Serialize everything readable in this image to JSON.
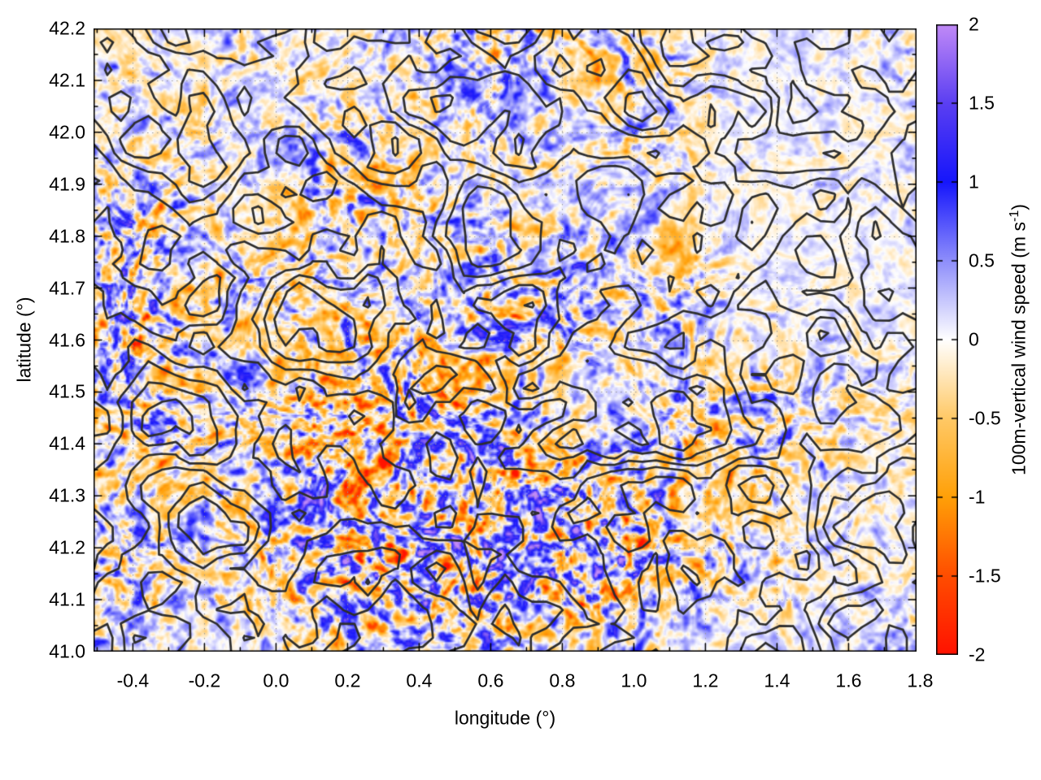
{
  "figure": {
    "background": "#ffffff",
    "colorbar_label_prefix": "100m-vertical wind speed (m s",
    "colorbar_label_superscript": "-1",
    "colorbar_label_suffix": ")"
  },
  "chart_data": {
    "type": "heatmap",
    "title": "",
    "xlabel": "longitude (°)",
    "ylabel": "latitude (°)",
    "x_range": [
      -0.51,
      1.79
    ],
    "y_range": [
      41.0,
      42.2
    ],
    "x_major_ticks": [
      {
        "v": -0.4,
        "label": "-0.4"
      },
      {
        "v": -0.2,
        "label": "-0.2"
      },
      {
        "v": 0.0,
        "label": "0.0"
      },
      {
        "v": 0.2,
        "label": "0.2"
      },
      {
        "v": 0.4,
        "label": "0.4"
      },
      {
        "v": 0.6,
        "label": "0.6"
      },
      {
        "v": 0.8,
        "label": "0.8"
      },
      {
        "v": 1.0,
        "label": "1.0"
      },
      {
        "v": 1.2,
        "label": "1.2"
      },
      {
        "v": 1.4,
        "label": "1.4"
      },
      {
        "v": 1.6,
        "label": "1.6"
      },
      {
        "v": 1.8,
        "label": "1.8"
      }
    ],
    "x_minor_ticks": [
      -0.5,
      -0.3,
      -0.1,
      0.1,
      0.3,
      0.5,
      0.7,
      0.9,
      1.1,
      1.3,
      1.5,
      1.7
    ],
    "y_major_ticks": [
      {
        "v": 41.0,
        "label": "41.0"
      },
      {
        "v": 41.1,
        "label": "41.1"
      },
      {
        "v": 41.2,
        "label": "41.2"
      },
      {
        "v": 41.3,
        "label": "41.3"
      },
      {
        "v": 41.4,
        "label": "41.4"
      },
      {
        "v": 41.5,
        "label": "41.5"
      },
      {
        "v": 41.6,
        "label": "41.6"
      },
      {
        "v": 41.7,
        "label": "41.7"
      },
      {
        "v": 41.8,
        "label": "41.8"
      },
      {
        "v": 41.9,
        "label": "41.9"
      },
      {
        "v": 42.0,
        "label": "42.0"
      },
      {
        "v": 42.1,
        "label": "42.1"
      },
      {
        "v": 42.2,
        "label": "42.2"
      }
    ],
    "y_minor_ticks": [
      41.05,
      41.15,
      41.25,
      41.35,
      41.45,
      41.55,
      41.65,
      41.75,
      41.85,
      41.95,
      42.05,
      42.15
    ],
    "grid": {
      "style": "dotted",
      "x_interval": 0.2,
      "y_interval": 0.1,
      "color": "#999999"
    },
    "colorbar": {
      "label": "100m-vertical wind speed (m s⁻¹)",
      "range": [
        -2,
        2
      ],
      "ticks": [
        {
          "v": -2,
          "label": "-2"
        },
        {
          "v": -1.5,
          "label": "-1.5"
        },
        {
          "v": -1,
          "label": "-1"
        },
        {
          "v": -0.5,
          "label": "-0.5"
        },
        {
          "v": 0,
          "label": "0"
        },
        {
          "v": 0.5,
          "label": "0.5"
        },
        {
          "v": 1,
          "label": "1"
        },
        {
          "v": 1.5,
          "label": "1.5"
        },
        {
          "v": 2,
          "label": "2"
        }
      ],
      "palette": [
        {
          "v": -2.0,
          "color": "#ff1200"
        },
        {
          "v": -1.5,
          "color": "#ff4d00"
        },
        {
          "v": -1.0,
          "color": "#ffa008"
        },
        {
          "v": -0.5,
          "color": "#ffc966"
        },
        {
          "v": 0.0,
          "color": "#ffffff"
        },
        {
          "v": 0.5,
          "color": "#8e8efb"
        },
        {
          "v": 1.0,
          "color": "#1616fb"
        },
        {
          "v": 1.5,
          "color": "#5b3ff2"
        },
        {
          "v": 2.0,
          "color": "#c18af7"
        }
      ]
    },
    "overlays": [
      {
        "type": "contour",
        "name": "terrain elevation contours",
        "color": "#2e2e2e",
        "levels": 6
      }
    ],
    "field": {
      "name": "100m vertical wind speed",
      "units": "m s⁻¹",
      "typical_range": [
        -1.5,
        1.5
      ],
      "description": "Fine-scale alternating bands of positive (blue) and negative (orange) vertical wind speed resembling mountain-wave patterns; strongest amplitudes around 0.2–0.9°E, 41.0–41.4°N and near the western edge around -0.45°E, 41.5–41.7°N; quieter pale areas in the east; black terrain contour lines overlaid with nested parallel ridges in the south-east."
    }
  }
}
